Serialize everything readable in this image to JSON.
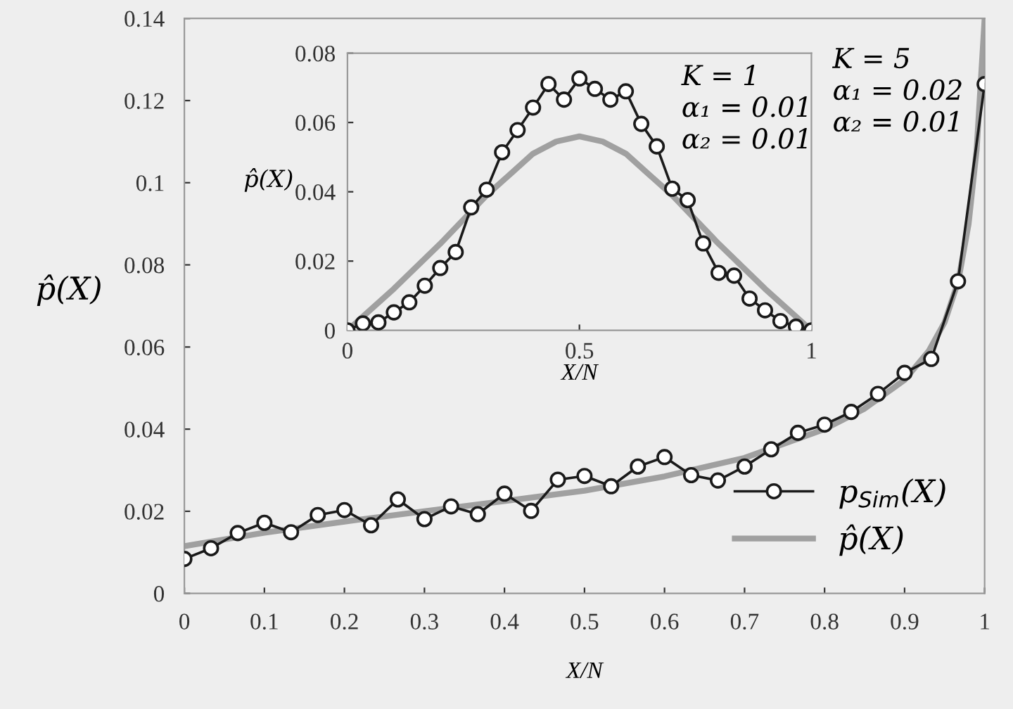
{
  "chart_data": [
    {
      "type": "line",
      "xlabel": "X/N",
      "ylabel": "p̂(X)",
      "xlim": [
        0,
        1
      ],
      "ylim": [
        0,
        0.14
      ],
      "xticks": [
        0,
        0.1,
        0.2,
        0.3,
        0.4,
        0.5,
        0.6,
        0.7,
        0.8,
        0.9,
        1
      ],
      "yticks": [
        0,
        0.02,
        0.04,
        0.06,
        0.08,
        0.1,
        0.12,
        0.14
      ],
      "legend": "bottom right",
      "grid": false,
      "annotations": [
        "K = 5\nα₁ = 0.02\nα₂ = 0.01"
      ],
      "series": [
        {
          "name": "p$_{Sim}$(X)",
          "color": "#1a1a1a",
          "marker": "circle",
          "x": [
            0,
            0.0333,
            0.0667,
            0.1,
            0.1333,
            0.1667,
            0.2,
            0.2333,
            0.2667,
            0.3,
            0.3333,
            0.3667,
            0.4,
            0.4333,
            0.4667,
            0.5,
            0.5333,
            0.5667,
            0.6,
            0.6333,
            0.6667,
            0.7,
            0.7333,
            0.7667,
            0.8,
            0.8333,
            0.8667,
            0.9,
            0.9333,
            0.9667,
            1
          ],
          "values": [
            0.0084,
            0.011,
            0.0147,
            0.0172,
            0.0149,
            0.0191,
            0.0203,
            0.0166,
            0.0229,
            0.0181,
            0.0212,
            0.0193,
            0.0243,
            0.0201,
            0.0277,
            0.0286,
            0.0261,
            0.0309,
            0.0332,
            0.0288,
            0.0275,
            0.0309,
            0.0351,
            0.0391,
            0.0411,
            0.0442,
            0.0486,
            0.0537,
            0.0571,
            0.076,
            0.124
          ]
        },
        {
          "name": "p̂(X)",
          "color": "#a0a0a0",
          "marker": "none",
          "x": [
            0,
            0.1,
            0.2,
            0.3,
            0.4,
            0.5,
            0.6,
            0.7,
            0.8,
            0.85,
            0.9,
            0.93,
            0.95,
            0.967,
            0.98,
            0.99,
            1
          ],
          "values": [
            0.0115,
            0.0148,
            0.0175,
            0.02,
            0.0225,
            0.025,
            0.0285,
            0.033,
            0.04,
            0.045,
            0.052,
            0.059,
            0.066,
            0.076,
            0.09,
            0.108,
            0.14
          ]
        }
      ]
    },
    {
      "type": "line",
      "xlabel": "X/N",
      "ylabel": "p̂(X)",
      "xlim": [
        0,
        1
      ],
      "ylim": [
        0,
        0.08
      ],
      "xticks": [
        0,
        0.5,
        1
      ],
      "yticks": [
        0,
        0.02,
        0.04,
        0.06,
        0.08
      ],
      "grid": false,
      "annotations": [
        "K = 1\nα₁ = 0.01\nα₂ = 0.01"
      ],
      "series": [
        {
          "color": "#1a1a1a",
          "marker": "circle",
          "x": [
            0,
            0.0333,
            0.0667,
            0.1,
            0.1333,
            0.1667,
            0.2,
            0.2333,
            0.2667,
            0.3,
            0.3333,
            0.3667,
            0.4,
            0.4333,
            0.4667,
            0.5,
            0.5333,
            0.5667,
            0.6,
            0.6333,
            0.6667,
            0.7,
            0.7333,
            0.7667,
            0.8,
            0.8333,
            0.8667,
            0.9,
            0.9333,
            0.9667,
            1
          ],
          "values": [
            0,
            0.002,
            0.0023,
            0.0052,
            0.0081,
            0.0129,
            0.018,
            0.0226,
            0.0355,
            0.0406,
            0.0514,
            0.0578,
            0.0643,
            0.0711,
            0.0666,
            0.0727,
            0.0697,
            0.0666,
            0.069,
            0.0596,
            0.0531,
            0.0409,
            0.0376,
            0.0251,
            0.0166,
            0.0158,
            0.0092,
            0.0058,
            0.0027,
            0.0011,
            0
          ]
        },
        {
          "color": "#a0a0a0",
          "marker": "none",
          "x": [
            0,
            0.1,
            0.2,
            0.3,
            0.35,
            0.4,
            0.45,
            0.5,
            0.55,
            0.6,
            0.65,
            0.7,
            0.8,
            0.9,
            1
          ],
          "values": [
            0,
            0.012,
            0.025,
            0.039,
            0.045,
            0.051,
            0.0545,
            0.056,
            0.0545,
            0.051,
            0.045,
            0.039,
            0.025,
            0.012,
            0
          ]
        }
      ]
    }
  ]
}
